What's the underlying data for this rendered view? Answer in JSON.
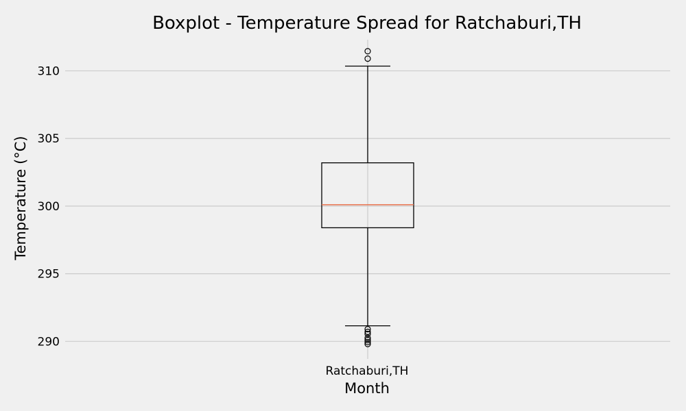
{
  "chart_data": {
    "type": "boxplot",
    "title": "Boxplot - Temperature Spread for Ratchaburi,TH",
    "xlabel": "Month",
    "ylabel": "Temperature (°C)",
    "categories": [
      "Ratchaburi,TH"
    ],
    "ylim": [
      288.7,
      312.3
    ],
    "yticks": [
      290,
      295,
      300,
      305,
      310
    ],
    "grid": true,
    "boxes": [
      {
        "category": "Ratchaburi,TH",
        "whisker_low": 291.15,
        "q1": 298.4,
        "median": 300.1,
        "q3": 303.2,
        "whisker_high": 310.35,
        "outliers": [
          310.9,
          311.45,
          290.9,
          290.7,
          290.55,
          290.25,
          290.1,
          289.95,
          289.8
        ]
      }
    ]
  },
  "colors": {
    "background": "#f0f0f0",
    "grid": "#cbcbcb",
    "box": "#000000",
    "median": "#e8704b"
  }
}
